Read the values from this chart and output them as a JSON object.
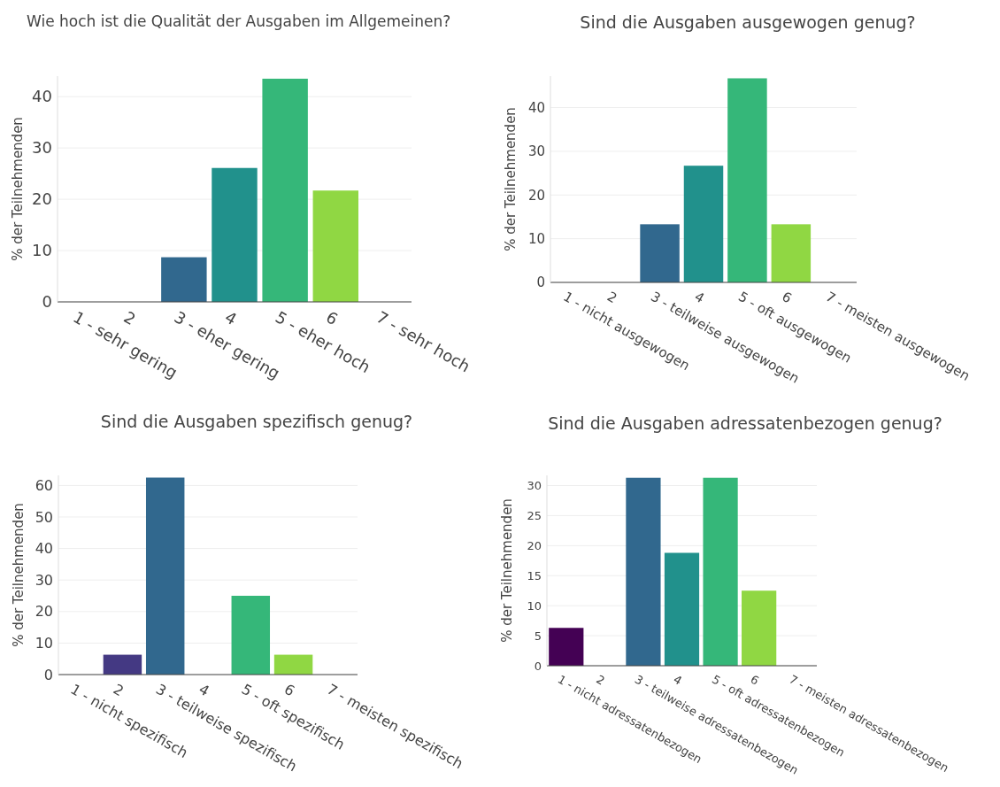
{
  "chart_data": [
    {
      "type": "bar",
      "title": "Wie hoch ist die Qualität der Ausgaben im Allgemeinen?",
      "ylabel": "% der Teilnehmenden",
      "categories": [
        "1 - sehr gering",
        "2",
        "3 - eher gering",
        "4",
        "5 - eher hoch",
        "6",
        "7 - sehr hoch"
      ],
      "values": [
        0,
        0,
        8.7,
        26.1,
        43.5,
        21.7,
        0
      ],
      "colors": [
        "#440154",
        "#443983",
        "#31688e",
        "#21918c",
        "#35b779",
        "#90d743",
        "#fde725"
      ],
      "ylim": [
        0,
        44
      ],
      "yticks": [
        0,
        10,
        20,
        30,
        40
      ],
      "grid": "y"
    },
    {
      "type": "bar",
      "title": "Sind die Ausgaben ausgewogen genug?",
      "ylabel": "% der Teilnehmenden",
      "categories": [
        "1 - nicht ausgewogen",
        "2",
        "3 - teilweise ausgewogen",
        "4",
        "5 - oft ausgewogen",
        "6",
        "7 - meisten ausgewogen"
      ],
      "values": [
        0,
        0,
        13.3,
        26.7,
        46.7,
        13.3,
        0
      ],
      "colors": [
        "#440154",
        "#443983",
        "#31688e",
        "#21918c",
        "#35b779",
        "#90d743",
        "#fde725"
      ],
      "ylim": [
        0,
        47.2
      ],
      "yticks": [
        0,
        10,
        20,
        30,
        40
      ],
      "grid": "y"
    },
    {
      "type": "bar",
      "title": "Sind die Ausgaben spezifisch genug?",
      "ylabel": "% der Teilnehmenden",
      "categories": [
        "1 - nicht spezifisch",
        "2",
        "3 - teilweise spezifisch",
        "4",
        "5 - oft spezifisch",
        "6",
        "7 - meisten spezifisch"
      ],
      "values": [
        0,
        6.3,
        62.5,
        0,
        25,
        6.3,
        0
      ],
      "colors": [
        "#440154",
        "#443983",
        "#31688e",
        "#21918c",
        "#35b779",
        "#90d743",
        "#fde725"
      ],
      "ylim": [
        0,
        63.2
      ],
      "yticks": [
        0,
        10,
        20,
        30,
        40,
        50,
        60
      ],
      "grid": "y"
    },
    {
      "type": "bar",
      "title": "Sind die Ausgaben adressatenbezogen genug?",
      "ylabel": "% der Teilnehmenden",
      "categories": [
        "1 - nicht adressatenbezogen",
        "2",
        "3 - teilweise adressatenbezogen",
        "4",
        "5 - oft adressatenbezogen",
        "6",
        "7 - meisten adressatenbezogen"
      ],
      "values": [
        6.3,
        0,
        31.3,
        18.8,
        31.3,
        12.5,
        0
      ],
      "colors": [
        "#440154",
        "#443983",
        "#31688e",
        "#21918c",
        "#35b779",
        "#90d743",
        "#fde725"
      ],
      "ylim": [
        0,
        31.7
      ],
      "yticks": [
        0,
        5,
        10,
        15,
        20,
        25,
        30
      ],
      "grid": "y"
    }
  ]
}
